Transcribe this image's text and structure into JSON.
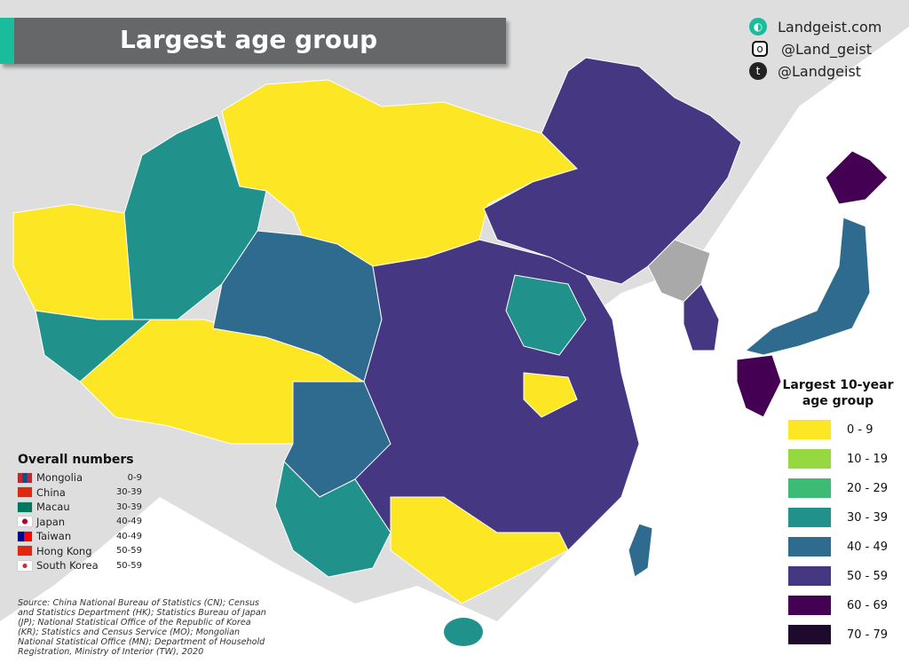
{
  "title": "Largest age group",
  "social": [
    {
      "icon": "globe-icon",
      "label": "Landgeist.com"
    },
    {
      "icon": "instagram-icon",
      "label": "@Land_geist"
    },
    {
      "icon": "twitter-icon",
      "label": "@Landgeist"
    }
  ],
  "legend": {
    "title_line1": "Largest 10-year",
    "title_line2": "age group",
    "items": [
      {
        "label": "0  -  9",
        "color": "#fde725"
      },
      {
        "label": "10 - 19",
        "color": "#95d840"
      },
      {
        "label": "20 - 29",
        "color": "#3cbb75"
      },
      {
        "label": "30 - 39",
        "color": "#21918c"
      },
      {
        "label": "40 - 49",
        "color": "#2f6b8e"
      },
      {
        "label": "50 - 59",
        "color": "#453781"
      },
      {
        "label": "60 - 69",
        "color": "#440154"
      },
      {
        "label": "70 - 79",
        "color": "#1e0a2c"
      }
    ]
  },
  "overall": {
    "title": "Overall numbers",
    "items": [
      {
        "country": "Mongolia",
        "value": "0-9",
        "flag": "mongolia-flag"
      },
      {
        "country": "China",
        "value": "30-39",
        "flag": "china-flag"
      },
      {
        "country": "Macau",
        "value": "30-39",
        "flag": "macau-flag"
      },
      {
        "country": "Japan",
        "value": "40-49",
        "flag": "japan-flag"
      },
      {
        "country": "Taiwan",
        "value": "40-49",
        "flag": "taiwan-flag"
      },
      {
        "country": "Hong Kong",
        "value": "50-59",
        "flag": "hong-kong-flag"
      },
      {
        "country": "South Korea",
        "value": "50-59",
        "flag": "south-korea-flag"
      }
    ]
  },
  "source": "Source: China National Bureau of Statistics (CN); Census and Statistics Department (HK); Statistics Bureau of Japan (JP); National Statistical Office of the Republic of Korea (KR); Statistics and Census Service (MO); Mongolian National Statistical Office (MN); Department of Household Registration, Ministry of Interior (TW), 2020",
  "colors": {
    "background_land": "#dedede",
    "sea": "#ffffff",
    "no_data": "#a9a9a9",
    "title_bar": "#666769",
    "accent": "#1abc9c"
  }
}
